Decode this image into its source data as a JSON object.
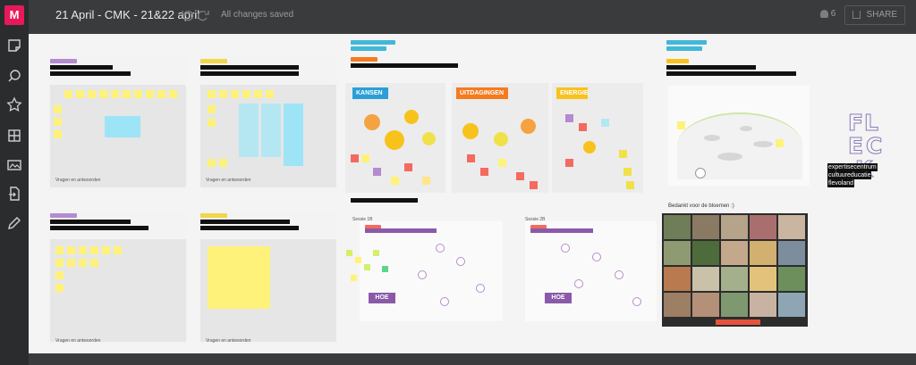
{
  "app": {
    "logo_letter": "M"
  },
  "topbar": {
    "title": "21 April - CMK - 21&22 april",
    "save_status": "All changes saved",
    "users_count": "6",
    "share_label": "SHARE"
  },
  "sidebar": {
    "icons": [
      "sticky-note-icon",
      "comment-icon",
      "star-icon",
      "grid-icon",
      "image-icon",
      "import-icon",
      "pen-icon"
    ]
  },
  "canvas": {
    "bottom_labels": [
      "Vragen en antwoorden",
      "Vragen en antwoorden",
      "Vragen en antwoorden",
      "Vragen en antwoorden"
    ],
    "sessie_labels": [
      "Sessie 1B",
      "Sessie 2B"
    ],
    "hoe_label": "HOE",
    "groups": [
      {
        "label": "KANSEN",
        "color": "#2a9fd6"
      },
      {
        "label": "UITDAGINGEN",
        "color": "#f47b20"
      },
      {
        "label": "ENERGIE",
        "color": "#f8c21c"
      }
    ],
    "bloemen_label": "Bedankt voor de bloemen :)",
    "brand_lines": [
      "expertisecentrum",
      "cultuureducatie",
      "flevoland"
    ],
    "fleck_letters": [
      "F",
      "L",
      "E",
      "C",
      "K"
    ]
  },
  "colors": {
    "bg_dark": "#3a3b3d",
    "accent": "#e8195a",
    "canvas": "#f4f4f4"
  }
}
